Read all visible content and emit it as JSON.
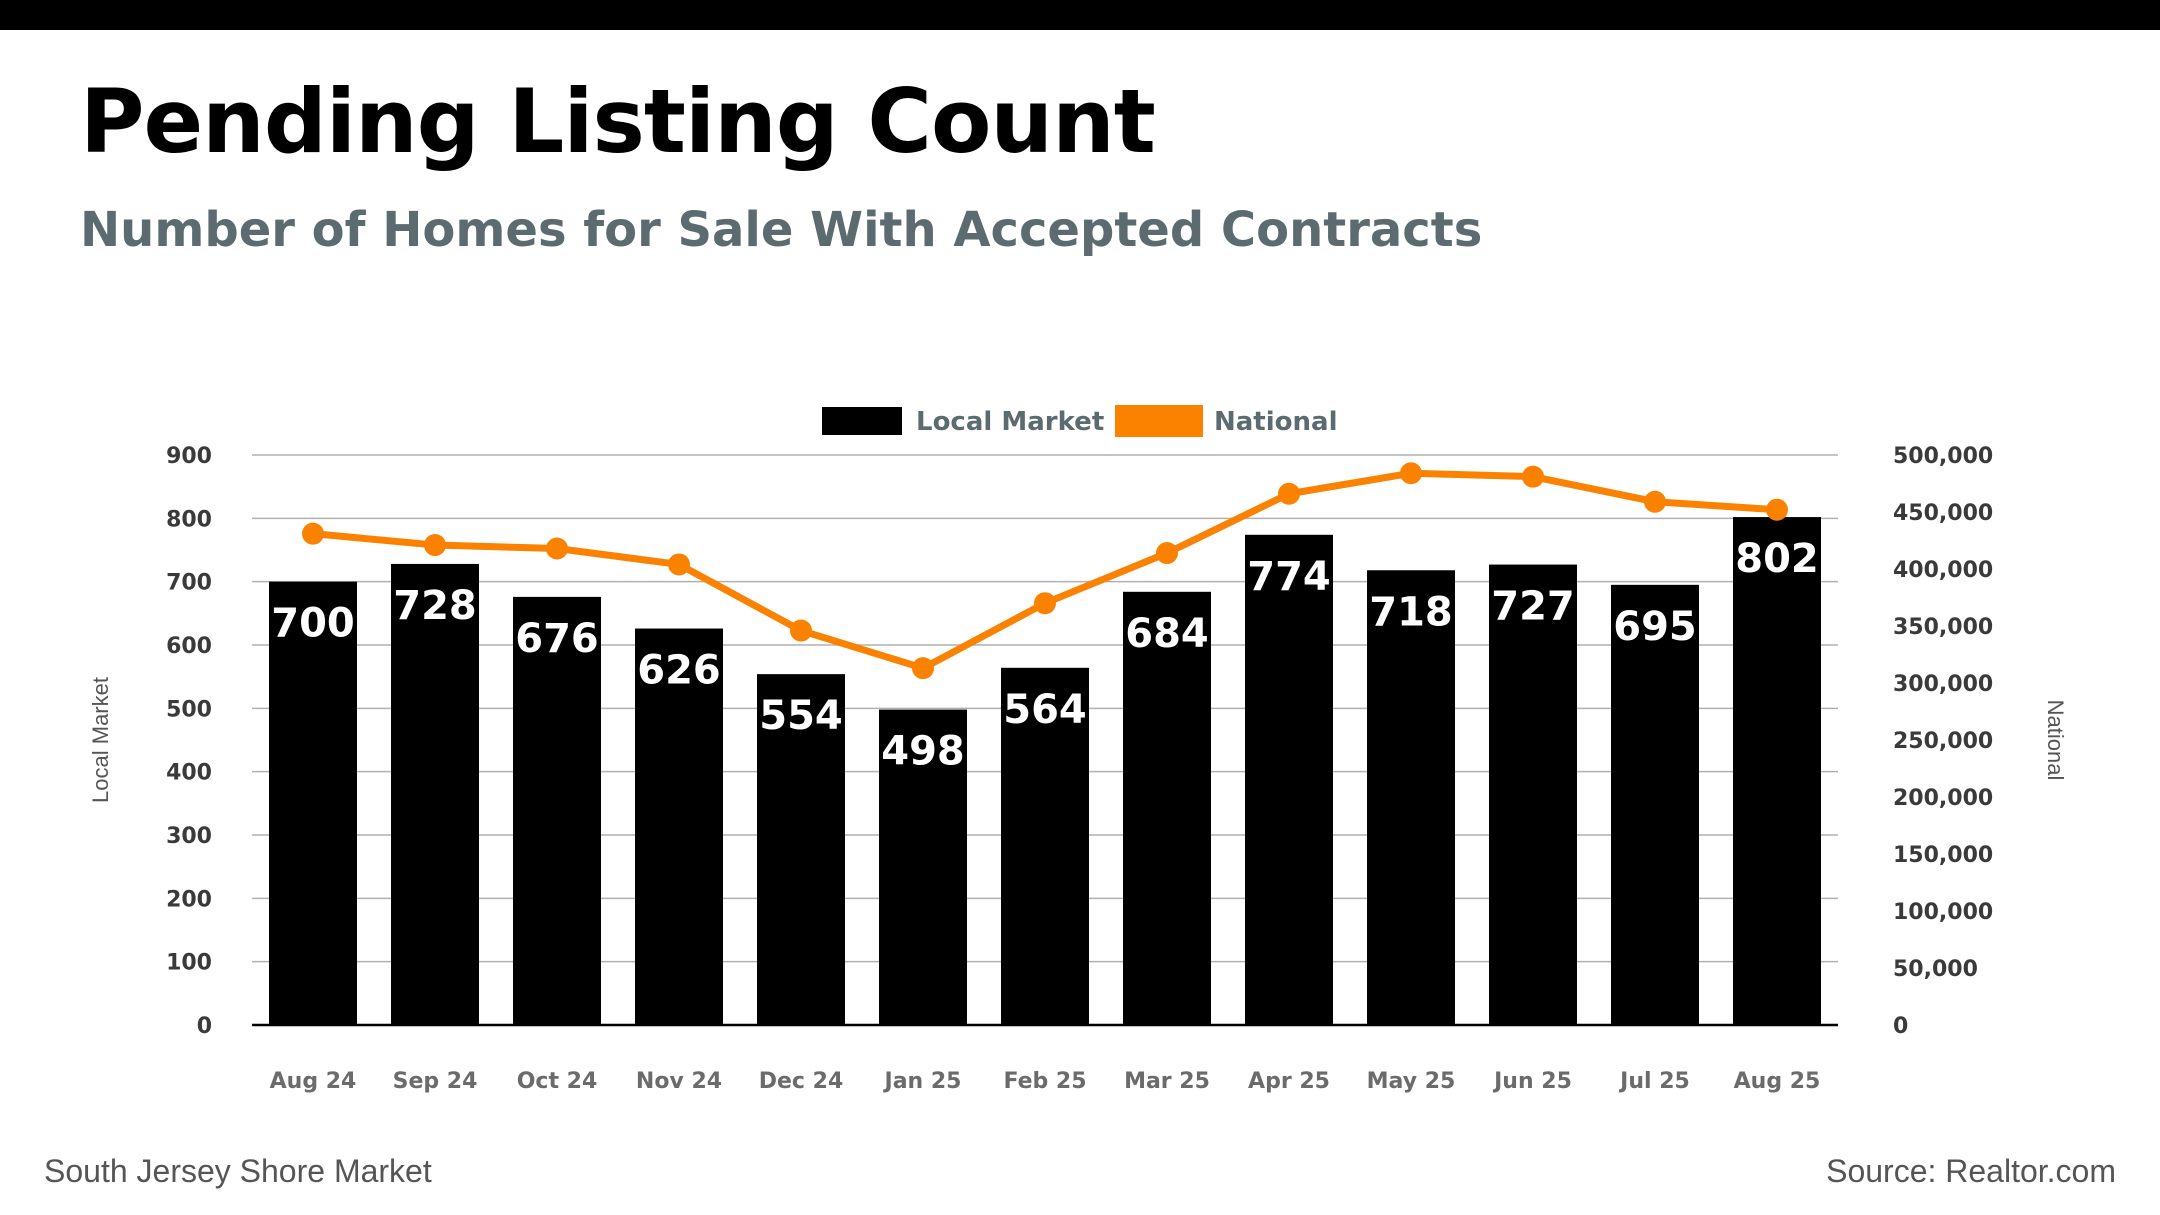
{
  "title": "Pending Listing Count",
  "subtitle": "Number of Homes for Sale With Accepted Contracts",
  "footer": {
    "left": "South Jersey Shore Market",
    "right": "Source: Realtor.com"
  },
  "colors": {
    "bar": "#000000",
    "line": "#fb8200",
    "grid": "#b0b0b0",
    "subtitle": "#5b6b70"
  },
  "chart_data": {
    "type": "bar",
    "categories": [
      "Aug 24",
      "Sep 24",
      "Oct 24",
      "Nov 24",
      "Dec 24",
      "Jan 25",
      "Feb 25",
      "Mar 25",
      "Apr 25",
      "May 25",
      "Jun 25",
      "Jul 25",
      "Aug 25"
    ],
    "series": [
      {
        "name": "Local Market",
        "type": "bar",
        "axis": "left",
        "values": [
          700,
          728,
          676,
          626,
          554,
          498,
          564,
          684,
          774,
          718,
          727,
          695,
          802
        ]
      },
      {
        "name": "National",
        "type": "line",
        "axis": "right",
        "values": [
          431000,
          421000,
          418000,
          404000,
          346000,
          313000,
          370000,
          414000,
          466000,
          484000,
          481000,
          459000,
          452000
        ]
      }
    ],
    "ylabel": "Local Market",
    "y2label": "National",
    "ylim": [
      0,
      900
    ],
    "y2lim": [
      0,
      500000
    ],
    "yticks": [
      "900",
      "800",
      "700",
      "600",
      "500",
      "400",
      "300",
      "200",
      "100",
      "0"
    ],
    "y2ticks": [
      "500,000",
      "450,000",
      "400,000",
      "350,000",
      "300,000",
      "250,000",
      "200,000",
      "150,000",
      "100,000",
      "50,000",
      "0"
    ],
    "legend": [
      "Local Market",
      "National"
    ],
    "legend_position": "top-center",
    "grid": true
  }
}
